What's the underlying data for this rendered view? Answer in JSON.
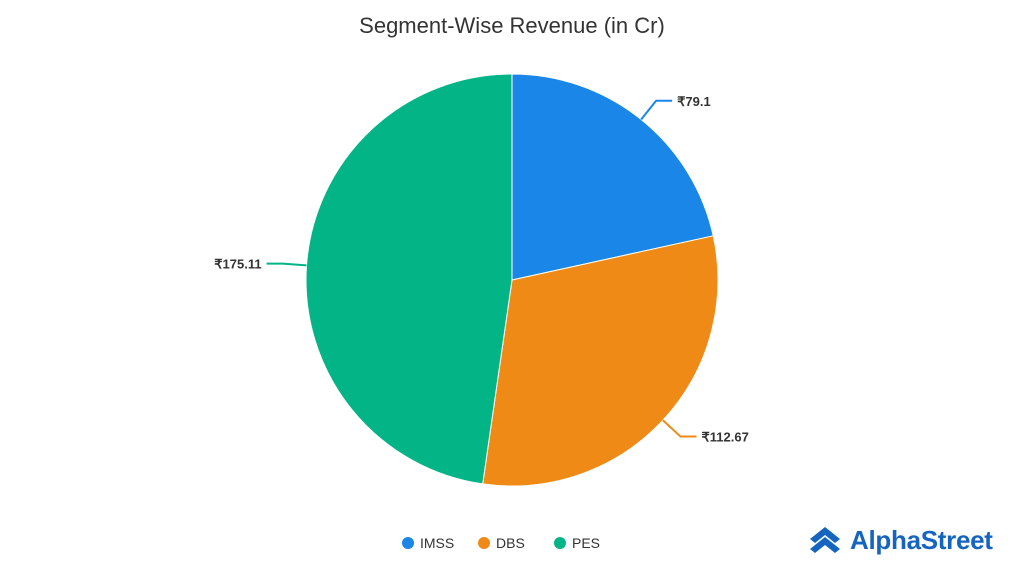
{
  "chart_data": {
    "type": "pie",
    "title": "Segment-Wise Revenue (in Cr)",
    "slices": [
      {
        "name": "IMSS",
        "value": 79.1,
        "label": "₹79.1",
        "color": "#1a86e8"
      },
      {
        "name": "DBS",
        "value": 112.67,
        "label": "₹112.67",
        "color": "#ef8a17"
      },
      {
        "name": "PES",
        "value": 175.11,
        "label": "₹175.11",
        "color": "#03b586"
      }
    ],
    "legend_position": "bottom"
  },
  "brand": {
    "name": "AlphaStreet",
    "color": "#1565c0",
    "icon": "alphastreet-logo-icon"
  }
}
